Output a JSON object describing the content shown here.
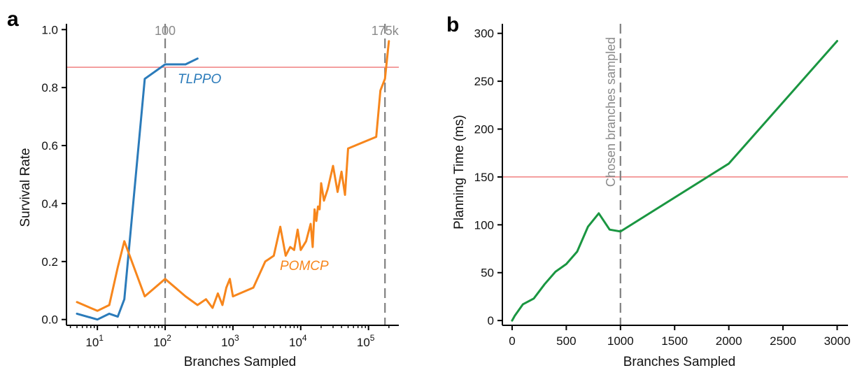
{
  "colors": {
    "tlppo": "#2b7bba",
    "pomcp": "#f7861c",
    "planning": "#1a9641",
    "threshold": "#f08080",
    "dashed": "#808080"
  },
  "chart_data": [
    {
      "type": "line",
      "panel": "a",
      "xlabel": "Branches Sampled",
      "ylabel": "Survival Rate",
      "xscale": "log",
      "xlim": [
        3.5,
        280000
      ],
      "ylim": [
        -0.02,
        1.02
      ],
      "x_tick_labels": [
        {
          "value": 10,
          "base": "10",
          "exp": "1"
        },
        {
          "value": 100,
          "base": "10",
          "exp": "2"
        },
        {
          "value": 1000,
          "base": "10",
          "exp": "3"
        },
        {
          "value": 10000,
          "base": "10",
          "exp": "4"
        },
        {
          "value": 100000,
          "base": "10",
          "exp": "5"
        }
      ],
      "y_ticks": [
        0.0,
        0.2,
        0.4,
        0.6,
        0.8,
        1.0
      ],
      "y_tick_labels": [
        "0.0",
        "0.2",
        "0.4",
        "0.6",
        "0.8",
        "1.0"
      ],
      "hline": 0.87,
      "vlines": [
        {
          "x": 100,
          "label": "100"
        },
        {
          "x": 175000,
          "label": "175k"
        }
      ],
      "series": [
        {
          "name": "TLPPO",
          "color_key": "tlppo",
          "x": [
            5,
            10,
            15,
            20,
            25,
            50,
            100,
            200,
            300
          ],
          "y": [
            0.02,
            0.0,
            0.02,
            0.01,
            0.07,
            0.83,
            0.88,
            0.88,
            0.9
          ]
        },
        {
          "name": "POMCP",
          "color_key": "pomcp",
          "x": [
            5,
            10,
            15,
            20,
            25,
            50,
            100,
            200,
            300,
            400,
            500,
            600,
            700,
            800,
            900,
            1000,
            2000,
            3000,
            4000,
            5000,
            6000,
            7000,
            8000,
            9000,
            10000,
            12000,
            14000,
            15000,
            16000,
            17000,
            18000,
            19000,
            20000,
            22000,
            25000,
            30000,
            35000,
            40000,
            45000,
            50000,
            130000,
            150000,
            175000,
            200000
          ],
          "y": [
            0.06,
            0.03,
            0.05,
            0.18,
            0.27,
            0.08,
            0.14,
            0.08,
            0.05,
            0.07,
            0.04,
            0.09,
            0.05,
            0.11,
            0.14,
            0.08,
            0.11,
            0.2,
            0.22,
            0.32,
            0.22,
            0.25,
            0.24,
            0.31,
            0.24,
            0.27,
            0.33,
            0.25,
            0.38,
            0.34,
            0.39,
            0.38,
            0.47,
            0.41,
            0.45,
            0.53,
            0.44,
            0.51,
            0.43,
            0.59,
            0.63,
            0.79,
            0.83,
            0.96
          ]
        }
      ],
      "series_labels": {
        "TLPPO": "TLPPO",
        "POMCP": "POMCP"
      }
    },
    {
      "type": "line",
      "panel": "b",
      "xlabel": "Branches Sampled",
      "ylabel": "Planning Time (ms)",
      "xlim": [
        -90,
        3100
      ],
      "ylim": [
        -5,
        310
      ],
      "x_ticks": [
        0,
        500,
        1000,
        1500,
        2000,
        2500,
        3000
      ],
      "x_tick_labels": [
        "0",
        "500",
        "1000",
        "1500",
        "2000",
        "2500",
        "3000"
      ],
      "y_ticks": [
        0,
        50,
        100,
        150,
        200,
        250,
        300
      ],
      "y_tick_labels": [
        "0",
        "50",
        "100",
        "150",
        "200",
        "250",
        "300"
      ],
      "hline": 150,
      "vline": {
        "x": 1000,
        "label": "Chosen branches sampled"
      },
      "series": [
        {
          "color_key": "planning",
          "x": [
            0,
            25,
            100,
            200,
            300,
            400,
            500,
            600,
            700,
            800,
            900,
            1000,
            2000,
            3000
          ],
          "y": [
            0,
            5,
            17,
            23,
            38,
            51,
            59,
            72,
            98,
            112,
            95,
            93,
            164,
            292
          ]
        }
      ]
    }
  ]
}
